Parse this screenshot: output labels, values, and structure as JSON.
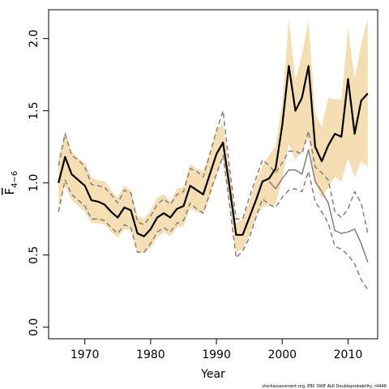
{
  "chart_data": {
    "type": "line",
    "xlabel": "Year",
    "ylabel_main": "F",
    "ylabel_sub": "4−6",
    "footnote": "stockassessment.org, EBC SWE ALK Doubleprobability, r4448",
    "xlim": [
      1964.5,
      2014.5
    ],
    "ylim": [
      -0.08,
      2.2
    ],
    "xticks": [
      1970,
      1980,
      1990,
      2000,
      2010
    ],
    "yticks": [
      0.0,
      0.5,
      1.0,
      1.5,
      2.0
    ],
    "ytick_labels": [
      "0.0",
      "0.5",
      "1.0",
      "1.5",
      "2.0"
    ],
    "grid": false,
    "colors": {
      "band": "#f5deb3",
      "main_line": "#000000",
      "secondary_line": "#808080",
      "dashed_line": "#808080"
    },
    "series": [
      {
        "role": "confidence_band",
        "x": [
          1966,
          1967,
          1968,
          1969,
          1970,
          1971,
          1972,
          1973,
          1974,
          1975,
          1976,
          1977,
          1978,
          1979,
          1980,
          1981,
          1982,
          1983,
          1984,
          1985,
          1986,
          1987,
          1988,
          1989,
          1990,
          1991,
          1992,
          1993,
          1994,
          1995,
          1996,
          1997,
          1998,
          1999,
          2000,
          2001,
          2002,
          2003,
          2004,
          2005,
          2006,
          2007,
          2008,
          2009,
          2010,
          2011,
          2012,
          2013
        ],
        "lower": [
          0.83,
          0.98,
          0.88,
          0.84,
          0.8,
          0.72,
          0.72,
          0.71,
          0.66,
          0.62,
          0.68,
          0.67,
          0.53,
          0.51,
          0.55,
          0.62,
          0.66,
          0.63,
          0.69,
          0.7,
          0.82,
          0.8,
          0.78,
          0.9,
          1.05,
          1.16,
          0.84,
          0.52,
          0.54,
          0.64,
          0.76,
          0.83,
          0.84,
          0.85,
          1.03,
          1.27,
          1.16,
          1.22,
          1.31,
          1.0,
          0.89,
          0.97,
          1.04,
          1.01,
          1.17,
          1.04,
          1.15,
          1.11
        ],
        "upper": [
          1.17,
          1.36,
          1.22,
          1.17,
          1.14,
          1.04,
          1.02,
          1.01,
          0.95,
          0.9,
          0.98,
          0.95,
          0.77,
          0.75,
          0.81,
          0.9,
          0.92,
          0.87,
          0.96,
          0.97,
          1.13,
          1.1,
          1.08,
          1.21,
          1.37,
          1.41,
          1.08,
          0.72,
          0.75,
          0.87,
          1.01,
          1.12,
          1.19,
          1.26,
          1.56,
          2.13,
          1.71,
          1.89,
          2.12,
          1.48,
          1.39,
          1.59,
          1.58,
          1.58,
          2.07,
          1.72,
          1.96,
          2.14
        ]
      },
      {
        "role": "main_line",
        "x": [
          1966,
          1967,
          1968,
          1969,
          1970,
          1971,
          1972,
          1973,
          1974,
          1975,
          1976,
          1977,
          1978,
          1979,
          1980,
          1981,
          1982,
          1983,
          1984,
          1985,
          1986,
          1987,
          1988,
          1989,
          1990,
          1991,
          1992,
          1993,
          1994,
          1995,
          1996,
          1997,
          1998,
          1999,
          2000,
          2001,
          2002,
          2003,
          2004,
          2005,
          2006,
          2007,
          2008,
          2009,
          2010,
          2011,
          2012,
          2013
        ],
        "y": [
          1.0,
          1.18,
          1.06,
          1.02,
          0.98,
          0.88,
          0.87,
          0.85,
          0.8,
          0.76,
          0.83,
          0.81,
          0.65,
          0.63,
          0.68,
          0.76,
          0.79,
          0.76,
          0.82,
          0.84,
          0.98,
          0.95,
          0.92,
          1.06,
          1.2,
          1.28,
          0.97,
          0.64,
          0.64,
          0.76,
          0.88,
          1.01,
          1.03,
          1.1,
          1.4,
          1.81,
          1.5,
          1.59,
          1.81,
          1.25,
          1.15,
          1.26,
          1.34,
          1.32,
          1.72,
          1.34,
          1.57,
          1.62
        ]
      },
      {
        "role": "secondary_line",
        "x": [
          1998,
          1999,
          2000,
          2001,
          2002,
          2003,
          2004,
          2005,
          2006,
          2007,
          2008,
          2009,
          2010,
          2011,
          2012,
          2013
        ],
        "y": [
          1.01,
          0.96,
          1.03,
          1.09,
          1.09,
          1.06,
          1.23,
          1.01,
          0.94,
          0.86,
          0.67,
          0.65,
          0.66,
          0.68,
          0.58,
          0.45
        ]
      },
      {
        "role": "dashed_upper",
        "x": [
          1966,
          1967,
          1968,
          1969,
          1970,
          1971,
          1972,
          1973,
          1974,
          1975,
          1976,
          1977,
          1978,
          1979,
          1980,
          1981,
          1982,
          1983,
          1984,
          1985,
          1986,
          1987,
          1988,
          1989,
          1990,
          1991,
          1992,
          1993,
          1994,
          1995,
          1996,
          1997,
          1998,
          1999,
          2000,
          2001,
          2002,
          2003,
          2004,
          2005,
          2006,
          2007,
          2008,
          2009,
          2010,
          2011,
          2012,
          2013
        ],
        "y": [
          1.12,
          1.34,
          1.19,
          1.16,
          1.11,
          0.99,
          0.98,
          0.97,
          0.92,
          0.86,
          0.95,
          0.93,
          0.73,
          0.71,
          0.77,
          0.85,
          0.89,
          0.85,
          0.92,
          0.94,
          1.1,
          1.08,
          1.04,
          1.2,
          1.36,
          1.5,
          1.1,
          0.75,
          0.75,
          0.9,
          1.03,
          1.16,
          1.12,
          1.07,
          1.14,
          1.22,
          1.22,
          1.2,
          1.36,
          1.11,
          1.07,
          1.02,
          0.8,
          0.76,
          0.82,
          0.94,
          0.86,
          0.65
        ]
      },
      {
        "role": "dashed_lower",
        "x": [
          1966,
          1967,
          1968,
          1969,
          1970,
          1971,
          1972,
          1973,
          1974,
          1975,
          1976,
          1977,
          1978,
          1979,
          1980,
          1981,
          1982,
          1983,
          1984,
          1985,
          1986,
          1987,
          1988,
          1989,
          1990,
          1991,
          1992,
          1993,
          1994,
          1995,
          1996,
          1997,
          1998,
          1999,
          2000,
          2001,
          2002,
          2003,
          2004,
          2005,
          2006,
          2007,
          2008,
          2009,
          2010,
          2011,
          2012,
          2013
        ],
        "y": [
          0.8,
          1.02,
          0.92,
          0.88,
          0.84,
          0.75,
          0.75,
          0.74,
          0.69,
          0.65,
          0.71,
          0.69,
          0.52,
          0.52,
          0.58,
          0.66,
          0.69,
          0.66,
          0.72,
          0.74,
          0.86,
          0.82,
          0.79,
          0.93,
          1.06,
          1.19,
          0.85,
          0.48,
          0.53,
          0.62,
          0.76,
          0.89,
          0.85,
          0.83,
          0.9,
          0.95,
          0.96,
          0.94,
          1.08,
          0.87,
          0.8,
          0.72,
          0.56,
          0.54,
          0.5,
          0.44,
          0.33,
          0.26
        ]
      }
    ]
  }
}
